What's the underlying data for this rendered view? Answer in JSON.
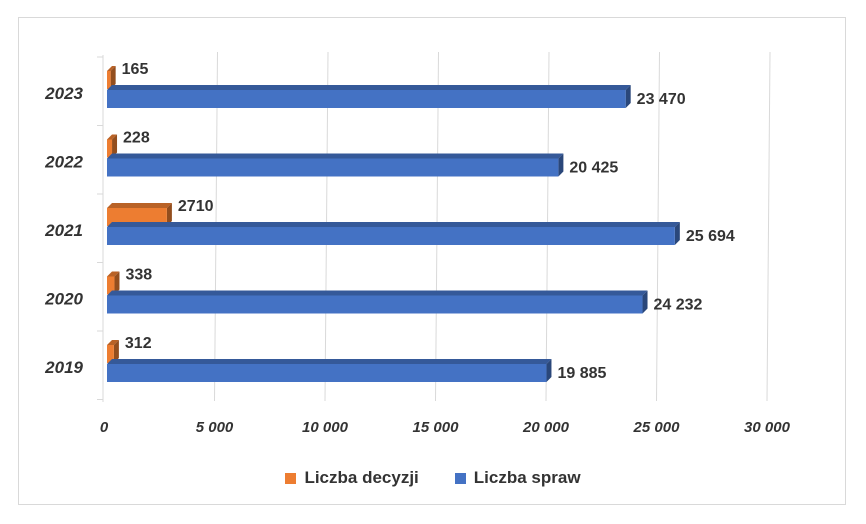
{
  "chart_data": {
    "type": "bar",
    "orientation": "horizontal",
    "categories": [
      "2019",
      "2020",
      "2021",
      "2022",
      "2023"
    ],
    "series": [
      {
        "name": "Liczba decyzji",
        "color": "#ed7d31",
        "values": [
          312,
          338,
          2710,
          228,
          165
        ],
        "labels": [
          "312",
          "338",
          "2710",
          "228",
          "165"
        ]
      },
      {
        "name": "Liczba spraw",
        "color": "#4472c4",
        "values": [
          19885,
          24232,
          25694,
          20425,
          23470
        ],
        "labels": [
          "19 885",
          "24 232",
          "25 694",
          "20 425",
          "23 470"
        ]
      }
    ],
    "xlim": [
      0,
      30000
    ],
    "xticks": [
      0,
      5000,
      10000,
      15000,
      20000,
      25000,
      30000
    ],
    "xtick_labels": [
      "0",
      "5 000",
      "10 000",
      "15 000",
      "20 000",
      "25 000",
      "30 000"
    ],
    "grid": true,
    "legend_position": "bottom",
    "title": "",
    "xlabel": "",
    "ylabel": ""
  }
}
